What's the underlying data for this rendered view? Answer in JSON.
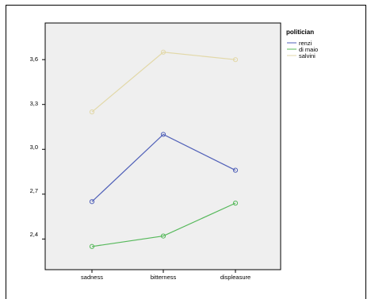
{
  "chart_data": {
    "type": "line",
    "categories": [
      "sadness",
      "bitterness",
      "displeasure"
    ],
    "series": [
      {
        "name": "renzi",
        "values": [
          2.65,
          3.1,
          2.86
        ],
        "color": "#5060b8"
      },
      {
        "name": "di maio",
        "values": [
          2.35,
          2.42,
          2.64
        ],
        "color": "#55b85a"
      },
      {
        "name": "salvini",
        "values": [
          3.25,
          3.65,
          3.6
        ],
        "color": "#e2d8a8"
      }
    ],
    "yticks": [
      "2,4",
      "2,7",
      "3,0",
      "3,3",
      "3,6"
    ],
    "ylim": [
      2.195,
      3.845
    ],
    "legend": {
      "title": "politician",
      "placement": "top-right"
    },
    "plot_background": "#efefef",
    "grid": false,
    "markers": "open-circle"
  }
}
